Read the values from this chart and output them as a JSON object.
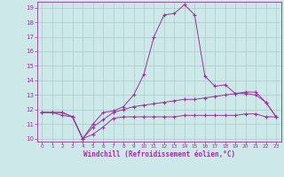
{
  "xlabel": "Windchill (Refroidissement éolien,°C)",
  "background_color": "#cce8e8",
  "grid_color": "#aacccc",
  "line_color": "#993399",
  "x": [
    0,
    1,
    2,
    3,
    4,
    5,
    6,
    7,
    8,
    9,
    10,
    11,
    12,
    13,
    14,
    15,
    16,
    17,
    18,
    19,
    20,
    21,
    22,
    23
  ],
  "line1": [
    11.8,
    11.8,
    11.8,
    11.5,
    10.0,
    11.0,
    11.8,
    11.9,
    12.2,
    13.0,
    14.4,
    17.0,
    18.5,
    18.6,
    19.2,
    18.5,
    14.3,
    13.6,
    13.7,
    13.1,
    13.1,
    13.0,
    12.5,
    11.5
  ],
  "line2": [
    11.8,
    11.8,
    11.8,
    11.5,
    10.0,
    10.8,
    11.3,
    11.8,
    12.0,
    12.2,
    12.3,
    12.4,
    12.5,
    12.6,
    12.7,
    12.7,
    12.8,
    12.9,
    13.0,
    13.1,
    13.2,
    13.2,
    12.5,
    11.5
  ],
  "line3": [
    11.8,
    11.8,
    11.6,
    11.5,
    10.0,
    10.3,
    10.8,
    11.4,
    11.5,
    11.5,
    11.5,
    11.5,
    11.5,
    11.5,
    11.6,
    11.6,
    11.6,
    11.6,
    11.6,
    11.6,
    11.7,
    11.7,
    11.5,
    11.5
  ],
  "ylim": [
    10,
    19
  ],
  "xlim": [
    0,
    23
  ],
  "yticks": [
    10,
    11,
    12,
    13,
    14,
    15,
    16,
    17,
    18,
    19
  ],
  "xticks": [
    0,
    1,
    2,
    3,
    4,
    5,
    6,
    7,
    8,
    9,
    10,
    11,
    12,
    13,
    14,
    15,
    16,
    17,
    18,
    19,
    20,
    21,
    22,
    23
  ]
}
